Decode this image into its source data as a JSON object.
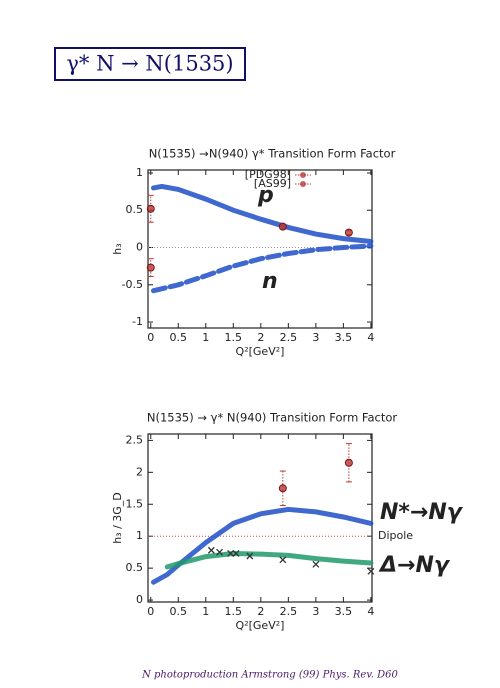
{
  "header": {
    "title": "γ* N → N(1535)"
  },
  "footer": "N photoproduction Armstrong (99) Phys. Rev. D60",
  "chart_data": [
    {
      "type": "line",
      "title": "N(1535) →N(940) γ* Transition Form Factor",
      "x_label": "Q²[GeV²]",
      "y_label": "h₃",
      "xlim": [
        -0.05,
        4.02
      ],
      "ylim": [
        -1.08,
        1.04
      ],
      "xticks": [
        0,
        0.5,
        1,
        1.5,
        2,
        2.5,
        3,
        3.5,
        4
      ],
      "yticks": [
        -1,
        -0.5,
        0,
        0.5,
        1
      ],
      "reference": {
        "value": 0,
        "color": "#999999"
      },
      "series": [
        {
          "name": "p",
          "kind": "line",
          "color": "#1f4fc8",
          "x": [
            0.05,
            0.2,
            0.5,
            1,
            1.5,
            2,
            2.5,
            3,
            3.5,
            4
          ],
          "values": [
            0.8,
            0.82,
            0.78,
            0.65,
            0.5,
            0.38,
            0.27,
            0.18,
            0.12,
            0.08
          ]
        },
        {
          "name": "n",
          "kind": "line",
          "dashed": true,
          "color": "#1f4fc8",
          "x": [
            0.05,
            0.5,
            1,
            1.5,
            2,
            2.5,
            3,
            3.5,
            4
          ],
          "values": [
            -0.58,
            -0.5,
            -0.38,
            -0.25,
            -0.15,
            -0.08,
            -0.03,
            0,
            0.02
          ]
        },
        {
          "name": "[PDG98]",
          "kind": "points",
          "marker": "circle",
          "color": "#b83a3a",
          "x": [
            0,
            0
          ],
          "values": [
            0.52,
            -0.27
          ],
          "errors": [
            0.18,
            0.12
          ]
        },
        {
          "name": "[AS99]",
          "kind": "points",
          "marker": "circle",
          "color": "#b83a3a",
          "x": [
            2.4,
            3.6
          ],
          "values": [
            0.28,
            0.2
          ],
          "errors": [
            0.03,
            0.03
          ]
        }
      ]
    },
    {
      "type": "line",
      "title": "N(1535) → γ* N(940) Transition Form Factor",
      "x_label": "Q²[GeV²]",
      "y_label": "h₃ / 3G_D",
      "xlim": [
        -0.05,
        4.02
      ],
      "ylim": [
        -0.03,
        2.6
      ],
      "xticks": [
        0,
        0.5,
        1,
        1.5,
        2,
        2.5,
        3,
        3.5,
        4
      ],
      "yticks": [
        0,
        0.5,
        1,
        1.5,
        2,
        2.5
      ],
      "reference": {
        "value": 1,
        "label": "Dipole",
        "color": "#d04848"
      },
      "series": [
        {
          "name": "N*→Nγ",
          "kind": "line",
          "color": "#1f4fc8",
          "x": [
            0.05,
            0.3,
            0.5,
            1,
            1.5,
            2,
            2.5,
            3,
            3.5,
            4
          ],
          "values": [
            0.28,
            0.4,
            0.55,
            0.9,
            1.2,
            1.35,
            1.42,
            1.38,
            1.3,
            1.2
          ]
        },
        {
          "name": "Δ→Nγ",
          "kind": "line",
          "color": "#1f9a6a",
          "x": [
            0.3,
            0.5,
            1,
            1.5,
            2,
            2.5,
            3,
            3.5,
            4
          ],
          "values": [
            0.52,
            0.57,
            0.68,
            0.73,
            0.72,
            0.7,
            0.65,
            0.61,
            0.58
          ]
        },
        {
          "kind": "points",
          "marker": "circle",
          "color": "#b83a3a",
          "x": [
            2.4,
            3.6
          ],
          "values": [
            1.75,
            2.15
          ],
          "errors": [
            0.27,
            0.3
          ]
        },
        {
          "kind": "points",
          "marker": "x",
          "color": "#333333",
          "x": [
            1.1,
            1.25,
            1.45,
            1.55,
            1.8,
            2.4,
            3.0,
            4.0
          ],
          "values": [
            0.78,
            0.75,
            0.73,
            0.73,
            0.69,
            0.63,
            0.56,
            0.45
          ]
        }
      ]
    }
  ]
}
